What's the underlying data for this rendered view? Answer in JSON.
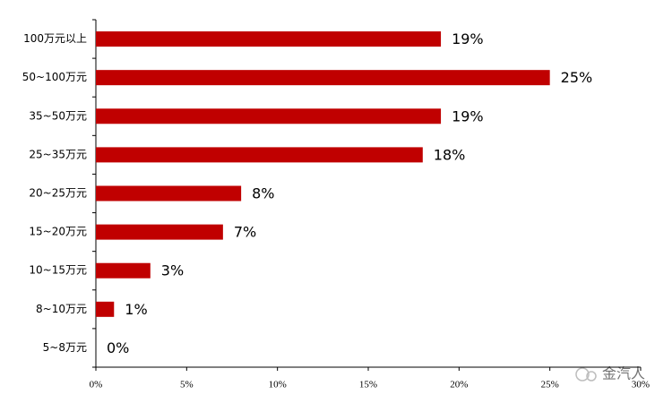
{
  "chart_data": {
    "type": "hbar",
    "categories": [
      "100万元以上",
      "50~100万元",
      "35~50万元",
      "25~35万元",
      "20~25万元",
      "15~20万元",
      "10~15万元",
      "8~10万元",
      "5~8万元"
    ],
    "values": [
      19,
      25,
      19,
      18,
      8,
      7,
      3,
      1,
      0
    ],
    "value_labels": [
      "19%",
      "25%",
      "19%",
      "18%",
      "8%",
      "7%",
      "3%",
      "1%",
      "0%"
    ],
    "color": "#c00000",
    "xlim": [
      0,
      30
    ],
    "xticks": [
      {
        "value": 0,
        "label": "0%"
      },
      {
        "value": 5,
        "label": "5%"
      },
      {
        "value": 10,
        "label": "10%"
      },
      {
        "value": 15,
        "label": "15%"
      },
      {
        "value": 20,
        "label": "20%"
      },
      {
        "value": 25,
        "label": "25%"
      },
      {
        "value": 30,
        "label": "30%"
      }
    ],
    "grid": false,
    "watermark": "金汽人"
  }
}
